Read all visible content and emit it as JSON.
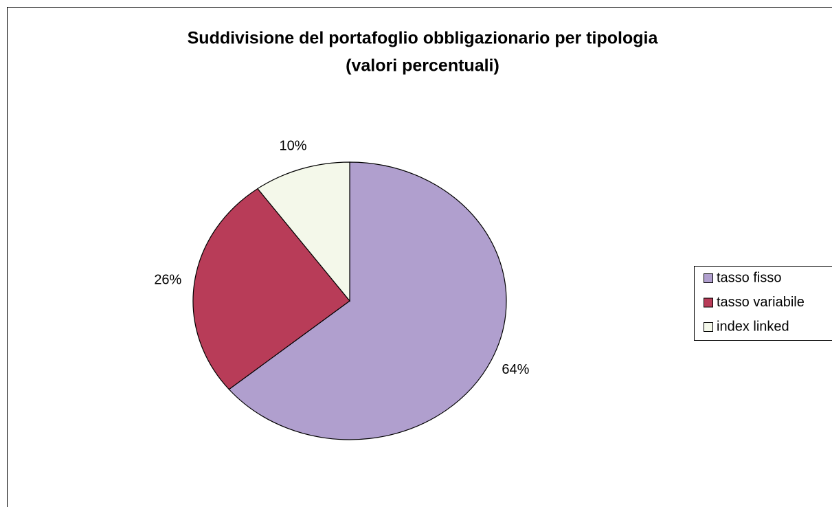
{
  "chart_data": {
    "type": "pie",
    "title": "Suddivisione del portafoglio obbligazionario per tipologia",
    "subtitle": "(valori percentuali)",
    "categories": [
      "tasso fisso",
      "tasso variabile",
      "index linked"
    ],
    "values": [
      64,
      26,
      10
    ],
    "value_labels": [
      "64%",
      "26%",
      "10%"
    ],
    "colors": [
      "#b09fce",
      "#b83c58",
      "#f4f8ea"
    ],
    "legend": "right"
  }
}
